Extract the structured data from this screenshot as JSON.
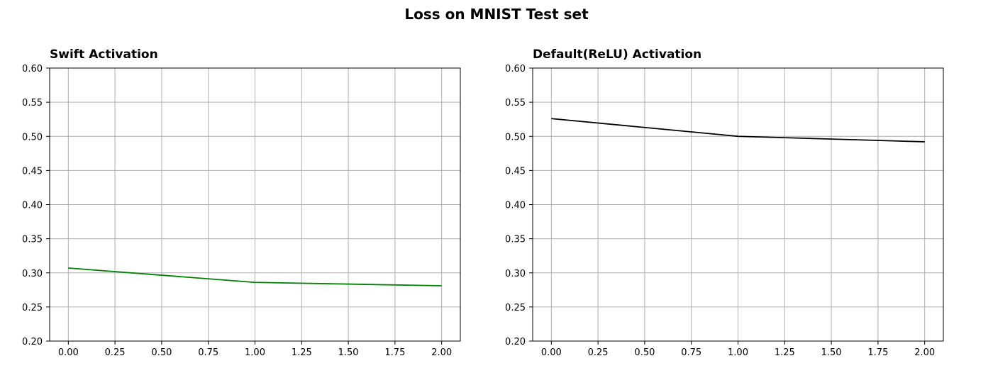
{
  "title": "Loss on MNIST Test set",
  "chart_data": [
    {
      "type": "line",
      "title": "Swift Activation",
      "xlabel": "",
      "ylabel": "",
      "xlim": [
        -0.1,
        2.1
      ],
      "ylim": [
        0.2,
        0.6
      ],
      "xticks": [
        "0.00",
        "0.25",
        "0.50",
        "0.75",
        "1.00",
        "1.25",
        "1.50",
        "1.75",
        "2.00"
      ],
      "yticks": [
        "0.20",
        "0.25",
        "0.30",
        "0.35",
        "0.40",
        "0.45",
        "0.50",
        "0.55",
        "0.60"
      ],
      "grid": true,
      "legend": "none",
      "series": [
        {
          "color": "#008000",
          "x": [
            0,
            1,
            2
          ],
          "y": [
            0.307,
            0.286,
            0.281
          ]
        }
      ]
    },
    {
      "type": "line",
      "title": "Default(ReLU) Activation",
      "xlabel": "",
      "ylabel": "",
      "xlim": [
        -0.1,
        2.1
      ],
      "ylim": [
        0.2,
        0.6
      ],
      "xticks": [
        "0.00",
        "0.25",
        "0.50",
        "0.75",
        "1.00",
        "1.25",
        "1.50",
        "1.75",
        "2.00"
      ],
      "yticks": [
        "0.20",
        "0.25",
        "0.30",
        "0.35",
        "0.40",
        "0.45",
        "0.50",
        "0.55",
        "0.60"
      ],
      "grid": true,
      "legend": "none",
      "series": [
        {
          "color": "#000000",
          "x": [
            0,
            1,
            2
          ],
          "y": [
            0.526,
            0.5,
            0.492
          ]
        }
      ]
    }
  ]
}
